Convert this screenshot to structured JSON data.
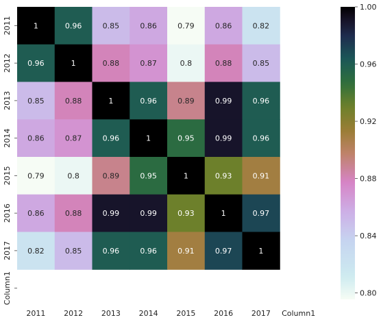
{
  "chart_data": {
    "type": "heatmap",
    "x_labels": [
      "2011",
      "2012",
      "2013",
      "2014",
      "2015",
      "2016",
      "2017",
      "Column1"
    ],
    "y_labels": [
      "2011",
      "2012",
      "2013",
      "2014",
      "2015",
      "2016",
      "2017",
      "Column1"
    ],
    "values": [
      [
        1,
        0.96,
        0.85,
        0.86,
        0.79,
        0.86,
        0.82,
        null
      ],
      [
        0.96,
        1,
        0.88,
        0.87,
        0.8,
        0.88,
        0.85,
        null
      ],
      [
        0.85,
        0.88,
        1,
        0.96,
        0.89,
        0.99,
        0.96,
        null
      ],
      [
        0.86,
        0.87,
        0.96,
        1,
        0.95,
        0.99,
        0.96,
        null
      ],
      [
        0.79,
        0.8,
        0.89,
        0.95,
        1,
        0.93,
        0.91,
        null
      ],
      [
        0.86,
        0.88,
        0.99,
        0.99,
        0.93,
        1,
        0.97,
        null
      ],
      [
        0.82,
        0.85,
        0.96,
        0.96,
        0.91,
        0.97,
        1,
        null
      ],
      [
        null,
        null,
        null,
        null,
        null,
        null,
        null,
        null
      ]
    ],
    "colorbar": {
      "min": 0.7955,
      "max": 1.0,
      "ticks": [
        1.0,
        0.96,
        0.92,
        0.88,
        0.84,
        0.8
      ],
      "tick_labels": [
        "1.00",
        "0.96",
        "0.92",
        "0.88",
        "0.84",
        "0.80"
      ]
    },
    "colormap": "cubehelix_r",
    "grid": false,
    "legend": "colorbar-right"
  }
}
